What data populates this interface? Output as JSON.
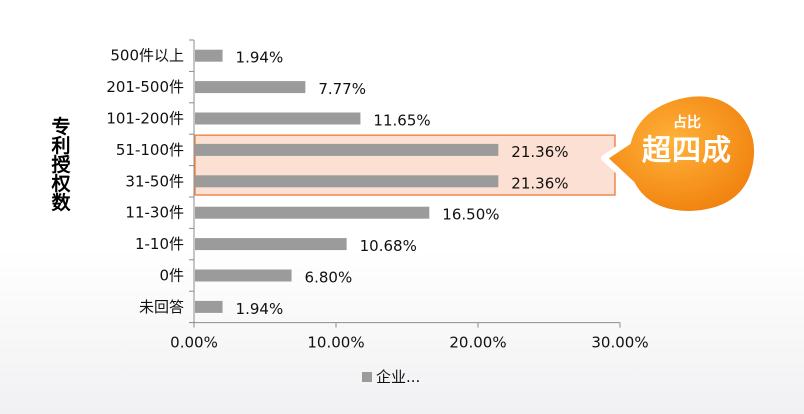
{
  "chart_data": {
    "type": "bar",
    "orientation": "horizontal",
    "categories": [
      "500件以上",
      "201-500件",
      "101-200件",
      "51-100件",
      "31-50件",
      "11-30件",
      "1-10件",
      "0件",
      "未回答"
    ],
    "series": [
      {
        "name": "企业...",
        "values": [
          1.94,
          7.77,
          11.65,
          21.36,
          21.36,
          16.5,
          10.68,
          6.8,
          1.94
        ]
      }
    ],
    "data_labels": [
      "1.94%",
      "7.77%",
      "11.65%",
      "21.36%",
      "21.36%",
      "16.50%",
      "10.68%",
      "6.80%",
      "1.94%"
    ],
    "xlim": [
      0,
      30
    ],
    "x_ticks": [
      "0.00%",
      "10.00%",
      "20.00%",
      "30.00%"
    ],
    "ylabel": "专利授权数",
    "highlighted_categories": [
      "51-100件",
      "31-50件"
    ],
    "callout": {
      "small": "占比",
      "big": "超四成"
    },
    "legend": "bottom",
    "grid": false,
    "colors": {
      "bar": "#9b9b9b",
      "highlight_fill": "#fbd5c4",
      "highlight_border": "#f0894f",
      "callout": "#f59a17"
    }
  }
}
